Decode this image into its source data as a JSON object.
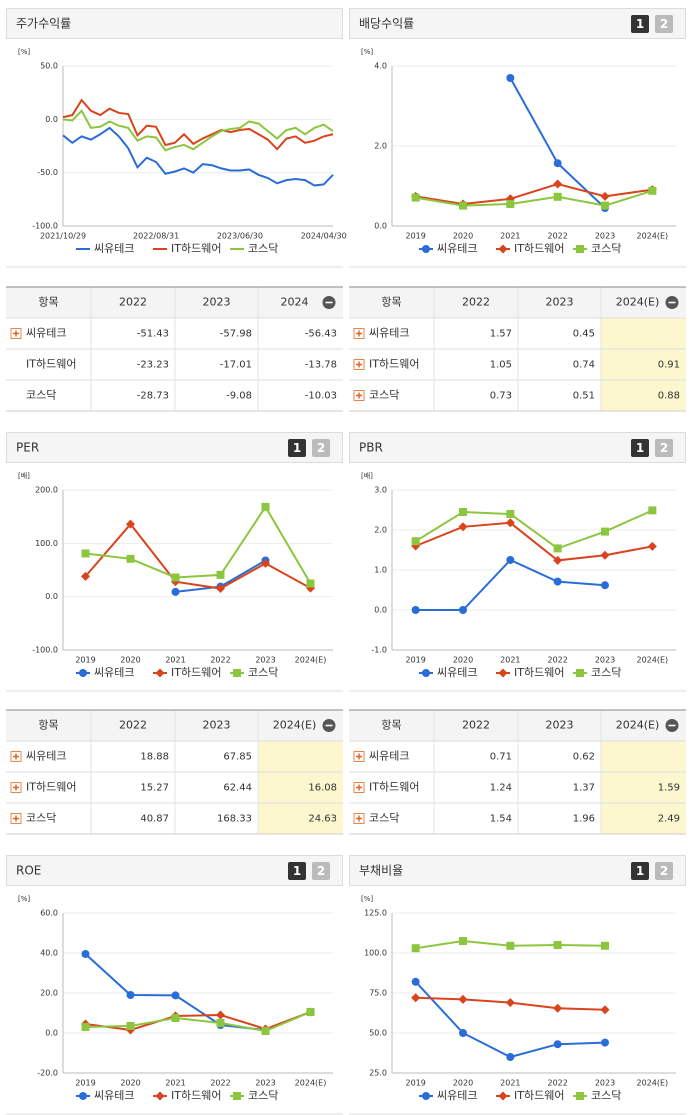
{
  "chart_data": [
    {
      "type": "line",
      "title": "주가수익률",
      "unit": "[%]",
      "markers": false,
      "categories": [
        "2021/10/29",
        null,
        null,
        null,
        null,
        null,
        null,
        null,
        null,
        null,
        "2022/08/31",
        null,
        null,
        null,
        null,
        null,
        null,
        null,
        null,
        "2023/06/30",
        null,
        null,
        null,
        null,
        null,
        null,
        null,
        null,
        "2024/04/30",
        null
      ],
      "ylim": [
        -100,
        50
      ],
      "yticks": [
        {
          "value": -100,
          "label": "-100.0"
        },
        {
          "value": -50,
          "label": "-50.0"
        },
        {
          "value": 0,
          "label": "0.0"
        },
        {
          "value": 50,
          "label": "50.0"
        }
      ],
      "series": [
        {
          "name": "씨유테크",
          "color": "#2a6dd9",
          "marker": "circle",
          "values": [
            -15,
            -22,
            -16,
            -19,
            -14,
            -8,
            -16,
            -27,
            -45,
            -36,
            -40,
            -51,
            -49,
            -46,
            -50,
            -42,
            -43,
            -46,
            -48,
            -48,
            -47,
            -52,
            -55,
            -60,
            -57,
            -56,
            -57,
            -62,
            -61,
            -52
          ]
        },
        {
          "name": "IT하드웨어",
          "color": "#d9441c",
          "marker": "diamond",
          "values": [
            2,
            4,
            18,
            8,
            4,
            10,
            6,
            5,
            -15,
            -6,
            -7,
            -24,
            -22,
            -14,
            -23,
            -18,
            -14,
            -10,
            -12,
            -10,
            -9,
            -14,
            -19,
            -28,
            -18,
            -16,
            -22,
            -20,
            -16,
            -14
          ]
        },
        {
          "name": "코스닥",
          "color": "#8cc63f",
          "marker": "square",
          "values": [
            0,
            -1,
            8,
            -8,
            -7,
            -2,
            -6,
            -8,
            -20,
            -16,
            -17,
            -29,
            -26,
            -24,
            -28,
            -22,
            -16,
            -11,
            -9,
            -8,
            -2,
            -4,
            -11,
            -18,
            -10,
            -8,
            -14,
            -8,
            -5,
            -11
          ]
        }
      ]
    },
    {
      "type": "line",
      "title": "배당수익률",
      "unit": "[%]",
      "markers": true,
      "pager": [
        "1",
        "2"
      ],
      "categories": [
        "2019",
        "2020",
        "2021",
        "2022",
        "2023",
        "2024(E)"
      ],
      "ylim": [
        0,
        4
      ],
      "yticks": [
        {
          "value": 0,
          "label": "0.0"
        },
        {
          "value": 2,
          "label": "2.0"
        },
        {
          "value": 4,
          "label": "4.0"
        }
      ],
      "series": [
        {
          "name": "씨유테크",
          "color": "#2a6dd9",
          "marker": "circle",
          "values": [
            null,
            null,
            3.7,
            1.57,
            0.45,
            null
          ]
        },
        {
          "name": "IT하드웨어",
          "color": "#d9441c",
          "marker": "diamond",
          "values": [
            0.74,
            0.55,
            0.68,
            1.05,
            0.74,
            0.91
          ]
        },
        {
          "name": "코스닥",
          "color": "#8cc63f",
          "marker": "square",
          "values": [
            0.71,
            0.51,
            0.55,
            0.73,
            0.51,
            0.88
          ]
        }
      ]
    },
    {
      "type": "line",
      "title": "PER",
      "unit": "[배]",
      "markers": true,
      "pager": [
        "1",
        "2"
      ],
      "categories": [
        "2019",
        "2020",
        "2021",
        "2022",
        "2023",
        "2024(E)"
      ],
      "ylim": [
        -100,
        200
      ],
      "yticks": [
        {
          "value": -100,
          "label": "-100.0"
        },
        {
          "value": 0,
          "label": "0.0"
        },
        {
          "value": 100,
          "label": "100.0"
        },
        {
          "value": 200,
          "label": "200.0"
        }
      ],
      "series": [
        {
          "name": "씨유테크",
          "color": "#2a6dd9",
          "marker": "circle",
          "values": [
            null,
            null,
            9,
            18.88,
            67.85,
            null
          ]
        },
        {
          "name": "IT하드웨어",
          "color": "#d9441c",
          "marker": "diamond",
          "values": [
            38,
            136,
            28,
            15.27,
            62.44,
            16.08
          ]
        },
        {
          "name": "코스닥",
          "color": "#8cc63f",
          "marker": "square",
          "values": [
            81,
            71,
            36,
            40.87,
            168.33,
            24.63
          ]
        }
      ]
    },
    {
      "type": "line",
      "title": "PBR",
      "unit": "[배]",
      "markers": true,
      "pager": [
        "1",
        "2"
      ],
      "categories": [
        "2019",
        "2020",
        "2021",
        "2022",
        "2023",
        "2024(E)"
      ],
      "ylim": [
        -1,
        3
      ],
      "yticks": [
        {
          "value": -1,
          "label": "-1.0"
        },
        {
          "value": 0,
          "label": "0.0"
        },
        {
          "value": 1,
          "label": "1.0"
        },
        {
          "value": 2,
          "label": "2.0"
        },
        {
          "value": 3,
          "label": "3.0"
        }
      ],
      "series": [
        {
          "name": "씨유테크",
          "color": "#2a6dd9",
          "marker": "circle",
          "values": [
            0,
            0,
            1.25,
            0.71,
            0.62,
            null
          ]
        },
        {
          "name": "IT하드웨어",
          "color": "#d9441c",
          "marker": "diamond",
          "values": [
            1.6,
            2.08,
            2.18,
            1.24,
            1.37,
            1.59
          ]
        },
        {
          "name": "코스닥",
          "color": "#8cc63f",
          "marker": "square",
          "values": [
            1.72,
            2.45,
            2.4,
            1.54,
            1.96,
            2.49
          ]
        }
      ]
    },
    {
      "type": "line",
      "title": "ROE",
      "unit": "[%]",
      "markers": true,
      "pager": [
        "1",
        "2"
      ],
      "categories": [
        "2019",
        "2020",
        "2021",
        "2022",
        "2023",
        "2024(E)"
      ],
      "ylim": [
        -20,
        60
      ],
      "yticks": [
        {
          "value": -20,
          "label": "-20.0"
        },
        {
          "value": 0,
          "label": "0.0"
        },
        {
          "value": 20,
          "label": "20.0"
        },
        {
          "value": 40,
          "label": "40.0"
        },
        {
          "value": 60,
          "label": "60.0"
        }
      ],
      "series": [
        {
          "name": "씨유테크",
          "color": "#2a6dd9",
          "marker": "circle",
          "values": [
            39.5,
            19,
            18.8,
            4,
            1.5,
            null
          ]
        },
        {
          "name": "IT하드웨어",
          "color": "#d9441c",
          "marker": "diamond",
          "values": [
            4.5,
            1.5,
            8.5,
            9,
            2,
            10.5
          ]
        },
        {
          "name": "코스닥",
          "color": "#8cc63f",
          "marker": "square",
          "values": [
            3,
            3.5,
            7.5,
            5,
            1,
            10.5
          ]
        }
      ]
    },
    {
      "type": "line",
      "title": "부채비율",
      "unit": "[%]",
      "markers": true,
      "pager": [
        "1",
        "2"
      ],
      "categories": [
        "2019",
        "2020",
        "2021",
        "2022",
        "2023",
        "2024(E)"
      ],
      "ylim": [
        25,
        125
      ],
      "yticks": [
        {
          "value": 25,
          "label": "25.0"
        },
        {
          "value": 50,
          "label": "50.0"
        },
        {
          "value": 75,
          "label": "75.0"
        },
        {
          "value": 100,
          "label": "100.0"
        },
        {
          "value": 125,
          "label": "125.0"
        }
      ],
      "series": [
        {
          "name": "씨유테크",
          "color": "#2a6dd9",
          "marker": "circle",
          "values": [
            82,
            50,
            35,
            43,
            44,
            null
          ]
        },
        {
          "name": "IT하드웨어",
          "color": "#d9441c",
          "marker": "diamond",
          "values": [
            72,
            71,
            69,
            65.5,
            64.5,
            null
          ]
        },
        {
          "name": "코스닥",
          "color": "#8cc63f",
          "marker": "square",
          "values": [
            103,
            107.5,
            104.5,
            105,
            104.5,
            null
          ]
        }
      ]
    }
  ],
  "tables": [
    {
      "columns": [
        "항목",
        "2022",
        "2023",
        "2024"
      ],
      "highlight_last": false,
      "rows": [
        {
          "label": "씨유테크",
          "expandable": true,
          "values": [
            -51.43,
            -57.98,
            -56.43
          ]
        },
        {
          "label": "IT하드웨어",
          "expandable": false,
          "values": [
            -23.23,
            -17.01,
            -13.78
          ]
        },
        {
          "label": "코스닥",
          "expandable": false,
          "values": [
            -28.73,
            -9.08,
            -10.03
          ]
        }
      ]
    },
    {
      "columns": [
        "항목",
        "2022",
        "2023",
        "2024(E)"
      ],
      "highlight_last": true,
      "rows": [
        {
          "label": "씨유테크",
          "expandable": true,
          "values": [
            1.57,
            0.45,
            null
          ]
        },
        {
          "label": "IT하드웨어",
          "expandable": true,
          "values": [
            1.05,
            0.74,
            0.91
          ]
        },
        {
          "label": "코스닥",
          "expandable": true,
          "values": [
            0.73,
            0.51,
            0.88
          ]
        }
      ]
    },
    {
      "columns": [
        "항목",
        "2022",
        "2023",
        "2024(E)"
      ],
      "highlight_last": true,
      "rows": [
        {
          "label": "씨유테크",
          "expandable": true,
          "values": [
            18.88,
            67.85,
            null
          ]
        },
        {
          "label": "IT하드웨어",
          "expandable": true,
          "values": [
            15.27,
            62.44,
            16.08
          ]
        },
        {
          "label": "코스닥",
          "expandable": true,
          "values": [
            40.87,
            168.33,
            24.63
          ]
        }
      ]
    },
    {
      "columns": [
        "항목",
        "2022",
        "2023",
        "2024(E)"
      ],
      "highlight_last": true,
      "rows": [
        {
          "label": "씨유테크",
          "expandable": true,
          "values": [
            0.71,
            0.62,
            null
          ]
        },
        {
          "label": "IT하드웨어",
          "expandable": true,
          "values": [
            1.24,
            1.37,
            1.59
          ]
        },
        {
          "label": "코스닥",
          "expandable": true,
          "values": [
            1.54,
            1.96,
            2.49
          ]
        }
      ]
    }
  ]
}
